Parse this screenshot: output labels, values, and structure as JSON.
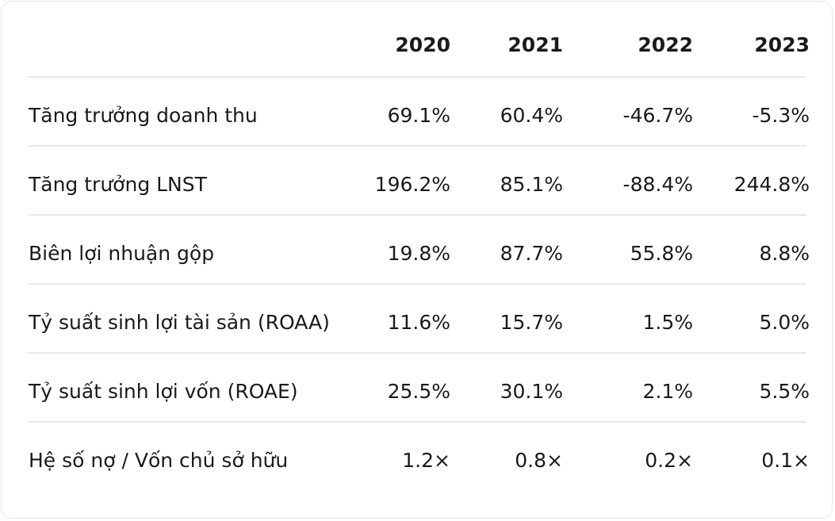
{
  "table": {
    "header": [
      "2020",
      "2021",
      "2022",
      "2023"
    ],
    "rows": [
      {
        "label": "Tăng trưởng doanh thu",
        "cells": [
          "69.1%",
          "60.4%",
          "-46.7%",
          "-5.3%"
        ]
      },
      {
        "label": "Tăng trưởng LNST",
        "cells": [
          "196.2%",
          "85.1%",
          "-88.4%",
          "244.8%"
        ]
      },
      {
        "label": "Biên lợi nhuận gộp",
        "cells": [
          "19.8%",
          "87.7%",
          "55.8%",
          "8.8%"
        ]
      },
      {
        "label": "Tỷ suất sinh lợi tài sản (ROAA)",
        "cells": [
          "11.6%",
          "15.7%",
          "1.5%",
          "5.0%"
        ]
      },
      {
        "label": "Tỷ suất sinh lợi vốn (ROAE)",
        "cells": [
          "25.5%",
          "30.1%",
          "2.1%",
          "5.5%"
        ]
      },
      {
        "label": "Hệ số nợ / Vốn chủ sở hữu",
        "cells": [
          "1.2×",
          "0.8×",
          "0.2×",
          "0.1×"
        ]
      }
    ]
  }
}
